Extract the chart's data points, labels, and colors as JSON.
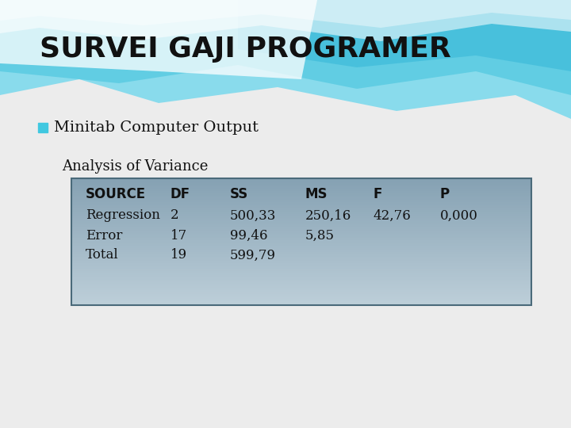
{
  "title": "SURVEI GAJI PROGRAMER",
  "subtitle_bullet": "□ Minitab Computer Output",
  "bullet_color": "#40c8e0",
  "analysis_label": "Analysis of Variance",
  "table_headers": [
    "SOURCE",
    "DF",
    "SS",
    "MS",
    "F",
    "P"
  ],
  "table_rows": [
    [
      "Regression",
      "2",
      "500,33",
      "250,16",
      "42,76",
      "0,000"
    ],
    [
      "Error",
      "17",
      "99,46",
      "5,85",
      "",
      ""
    ],
    [
      "Total",
      "19",
      "599,79",
      "",
      "",
      ""
    ]
  ],
  "title_color": "#111111",
  "title_fontsize": 26,
  "subtitle_fontsize": 14,
  "analysis_fontsize": 13,
  "table_header_fontsize": 12,
  "table_row_fontsize": 12,
  "bg_color": "#f0f0f0",
  "table_border_color": "#4a6a7a",
  "wave_color1": "#60d0e8",
  "wave_color2": "#40b8d0",
  "wave_color3": "#80dce8",
  "white_color": "#ffffff"
}
